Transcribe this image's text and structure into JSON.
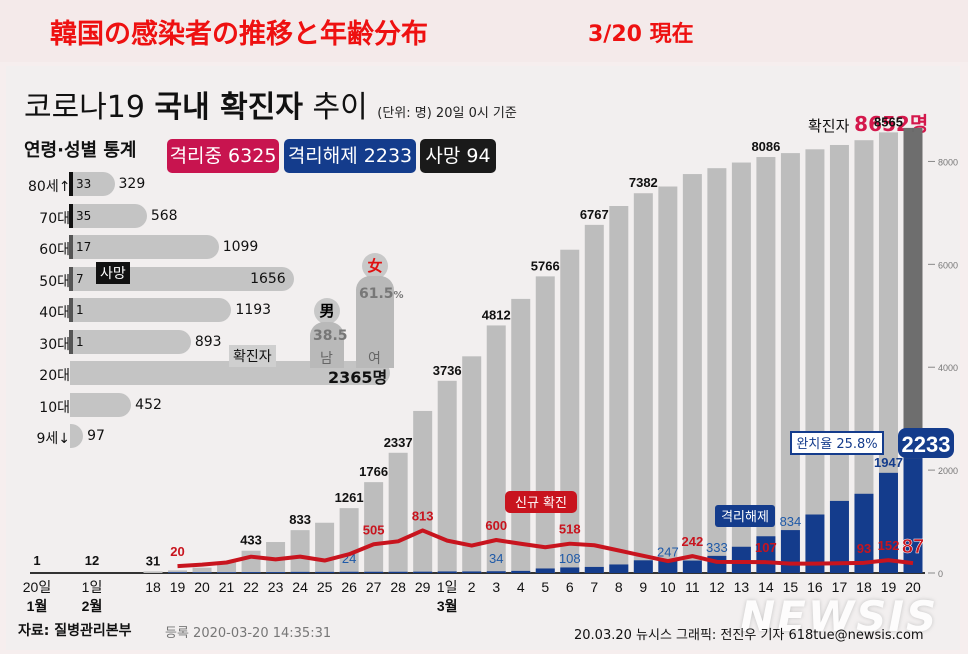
{
  "banner": {
    "title": "韓国の感染者の推移と年齢分布",
    "date": "3/20 現在"
  },
  "headline": {
    "prefix": "코로나19 ",
    "bold": "국내 확진자",
    "suffix": " 추이",
    "unit": "(단위: 명) 20일 0시 기준"
  },
  "total": {
    "label": "확진자 ",
    "value": "8652명"
  },
  "age_section_title": "연령·성별 통계",
  "badges": [
    {
      "label": "격리중 6325",
      "color": "#c8144f"
    },
    {
      "label": "격리해제 2233",
      "color": "#143c8c"
    },
    {
      "label": "사망 94",
      "color": "#1a1a1a"
    }
  ],
  "age_stats": [
    {
      "group": "80세↑",
      "deaths": "33",
      "cases": "329",
      "value": 329
    },
    {
      "group": "70대",
      "deaths": "35",
      "cases": "568",
      "value": 568
    },
    {
      "group": "60대",
      "deaths": "17",
      "cases": "1099",
      "value": 1099
    },
    {
      "group": "50대",
      "deaths": "7",
      "cases": "1656",
      "value": 1656
    },
    {
      "group": "40대",
      "deaths": "1",
      "cases": "1193",
      "value": 1193
    },
    {
      "group": "30대",
      "deaths": "1",
      "cases": "893",
      "value": 893
    },
    {
      "group": "20대",
      "deaths": "",
      "cases": "2365명",
      "value": 2365
    },
    {
      "group": "10대",
      "deaths": "",
      "cases": "452",
      "value": 452
    },
    {
      "group": "9세↓",
      "deaths": "",
      "cases": "97",
      "value": 97
    }
  ],
  "age_callouts": {
    "death": "사망",
    "confirmed": "확진자"
  },
  "gender": {
    "male": {
      "symbol": "男",
      "pct": "38.5",
      "label": "남",
      "value": 38.5
    },
    "female": {
      "symbol": "女",
      "pct": "61.5",
      "pct_suffix": "%",
      "label": "여",
      "value": 61.5
    }
  },
  "chart_data": {
    "type": "bar",
    "title": "코로나19 국내 확진자 추이",
    "categories": [
      "20일",
      "1일",
      "18",
      "19",
      "20",
      "21",
      "22",
      "23",
      "24",
      "25",
      "26",
      "27",
      "28",
      "29",
      "1일",
      "2",
      "3",
      "4",
      "5",
      "6",
      "7",
      "8",
      "9",
      "10",
      "11",
      "12",
      "13",
      "14",
      "15",
      "16",
      "17",
      "18",
      "19",
      "20"
    ],
    "month_labels": [
      {
        "index": 0,
        "label": "1월"
      },
      {
        "index": 1,
        "label": "2월"
      },
      {
        "index": 14,
        "label": "3월"
      }
    ],
    "ylim": [
      0,
      9000
    ],
    "yticks": [
      0,
      2000,
      4000,
      6000,
      8000
    ],
    "series": [
      {
        "name": "확진자 (누적)",
        "color": "#bdbdbd",
        "values": [
          1,
          12,
          31,
          51,
          104,
          204,
          433,
          602,
          833,
          977,
          1261,
          1766,
          2337,
          3150,
          3736,
          4212,
          4812,
          5328,
          5766,
          6284,
          6767,
          7134,
          7382,
          7513,
          7755,
          7869,
          7979,
          8086,
          8162,
          8236,
          8320,
          8413,
          8565,
          8652
        ],
        "labels": {
          "0": "1",
          "1": "12",
          "2": "31",
          "6": "433",
          "8": "833",
          "10": "1261",
          "11": "1766",
          "12": "2337",
          "14": "3736",
          "16": "4812",
          "18": "5766",
          "20": "6767",
          "22": "7382",
          "27": "8086",
          "32": "8565"
        }
      },
      {
        "name": "격리해제 (누적)",
        "color": "#143c8c",
        "values": [
          0,
          0,
          0,
          16,
          16,
          16,
          18,
          18,
          22,
          22,
          24,
          24,
          24,
          26,
          30,
          30,
          34,
          41,
          88,
          108,
          118,
          166,
          247,
          247,
          242,
          333,
          510,
          714,
          834,
          1137,
          1401,
          1540,
          1947,
          2233
        ],
        "labels": {
          "10": "24",
          "16": "34",
          "19": "108",
          "23": "247",
          "25": "333",
          "28": "834",
          "32": "1947"
        }
      },
      {
        "name": "신규 확진",
        "color": "#c8141e",
        "type": "line",
        "values": [
          null,
          null,
          null,
          20,
          53,
          100,
          229,
          169,
          231,
          144,
          284,
          505,
          571,
          813,
          586,
          476,
          600,
          516,
          438,
          518,
          483,
          367,
          248,
          131,
          242,
          114,
          110,
          107,
          76,
          74,
          84,
          93,
          152,
          87
        ],
        "labels": {
          "3": "20",
          "11": "505",
          "13": "813",
          "16": "600",
          "19": "518",
          "24": "242",
          "27": "107",
          "31": "93",
          "32": "152",
          "33": "87"
        }
      }
    ],
    "annotations": {
      "new_cases_tag": "신규 확진",
      "released_tag": "격리해제",
      "recovery_rate": "완치율 25.8%",
      "released_total": "2233",
      "total_cases": "확진자 8652명"
    }
  },
  "footer": {
    "source": "자료: 질병관리본부",
    "registered": "등록 2020-03-20 14:35:31",
    "credit": "20.03.20 뉴시스 그래픽: 전진우 기자 618tue@newsis.com",
    "watermark": "NEWSIS"
  }
}
